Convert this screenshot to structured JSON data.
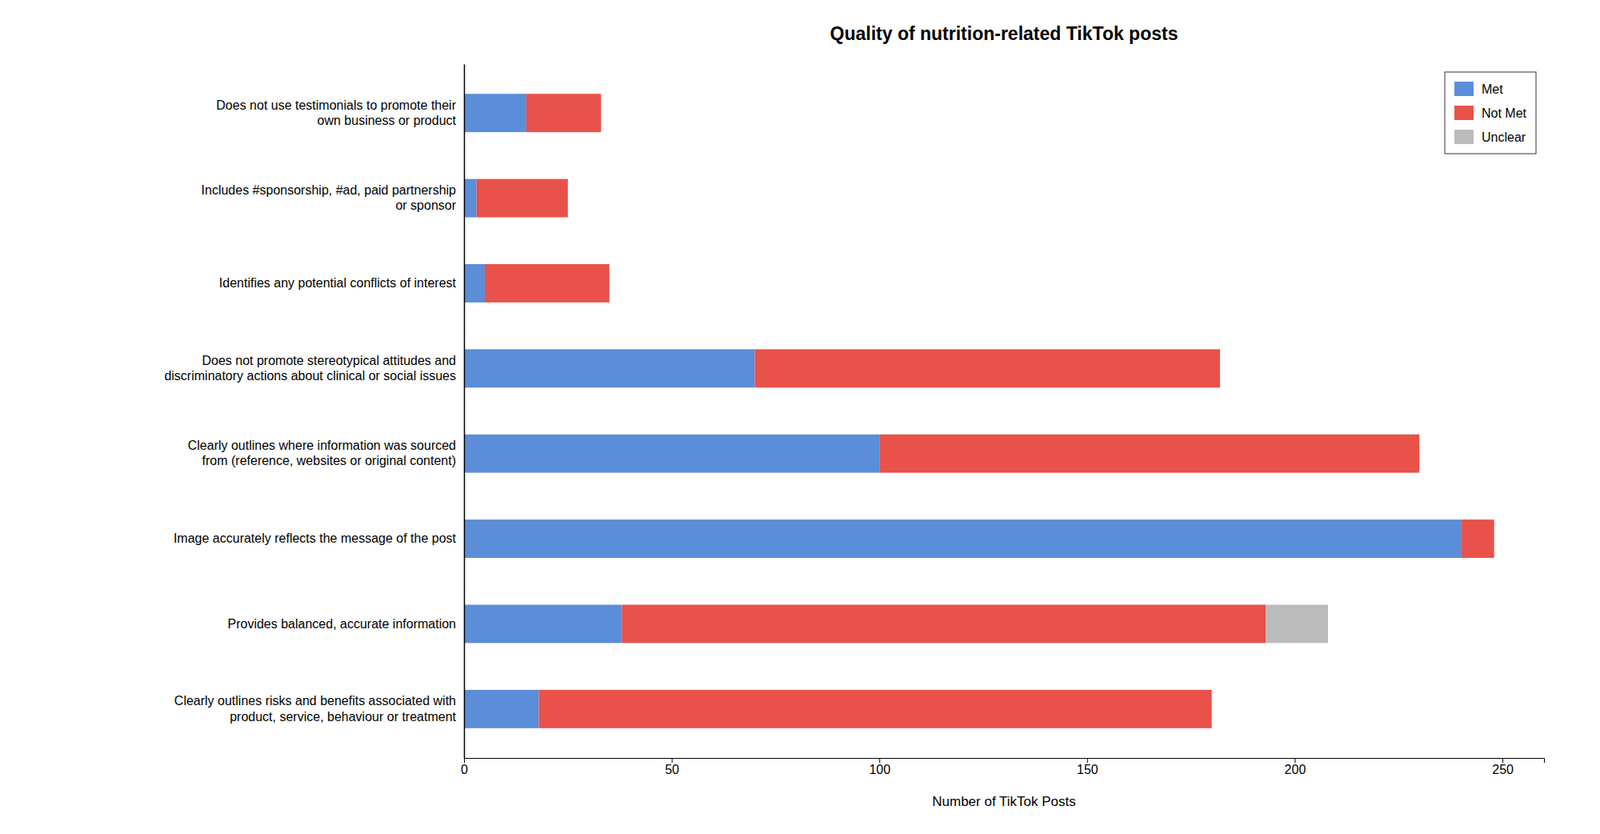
{
  "chart_data": {
    "type": "bar",
    "orientation": "horizontal",
    "stacked": true,
    "title": "Quality of nutrition-related TikTok posts",
    "xlabel": "Number of TikTok Posts",
    "categories": [
      "Does not use testimonials to promote their\nown business or product",
      "Includes #sponsorship, #ad, paid partnership\nor sponsor",
      "Identifies any potential conflicts of interest",
      "Does not promote stereotypical attitudes and\ndiscriminatory actions about clinical or social issues",
      "Clearly outlines where information was sourced\nfrom (reference, websites or original content)",
      "Image accurately reflects the message of the post",
      "Provides balanced, accurate information",
      "Clearly outlines risks and benefits associated with\nproduct, service, behaviour or treatment"
    ],
    "series": [
      {
        "name": "Met",
        "color": "#5B8DD9",
        "values": [
          15,
          3,
          5,
          70,
          100,
          240,
          38,
          18
        ]
      },
      {
        "name": "Not Met",
        "color": "#E8524A",
        "values": [
          18,
          22,
          30,
          112,
          130,
          8,
          155,
          162
        ]
      },
      {
        "name": "Unclear",
        "color": "#BBBBBB",
        "values": [
          0,
          0,
          0,
          0,
          0,
          0,
          15,
          0
        ]
      }
    ],
    "xlim": [
      0,
      260
    ],
    "xticks": [
      0,
      50,
      100,
      150,
      200,
      250
    ],
    "legend": "upper right"
  }
}
